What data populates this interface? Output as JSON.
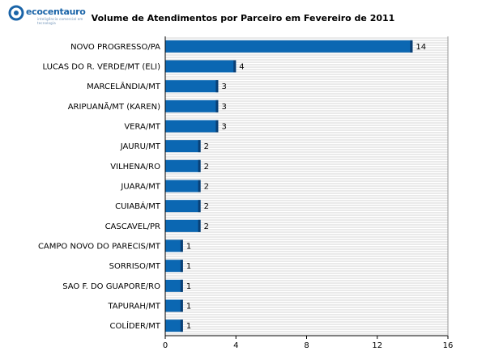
{
  "logo": {
    "name": "ecocentauro",
    "tagline": "inteligência comercial em tecnologia"
  },
  "chart_data": {
    "type": "bar",
    "orientation": "horizontal",
    "title": "Volume de Atendimentos por Parceiro em Fevereiro de 2011",
    "xlabel": "",
    "ylabel": "",
    "xlim": [
      0,
      16
    ],
    "xticks": [
      0,
      4,
      8,
      12,
      16
    ],
    "grid": "horizontal stripes",
    "bar_color": "#0b67b2",
    "bar_edge_color": "#0a3f74",
    "categories": [
      "NOVO PROGRESSO/PA",
      "LUCAS DO R. VERDE/MT (ELI)",
      "MARCELÂNDIA/MT",
      "ARIPUANÃ/MT (KAREN)",
      "VERA/MT",
      "JAURU/MT",
      "VILHENA/RO",
      "JUARA/MT",
      "CUIABÁ/MT",
      "CASCAVEL/PR",
      "CAMPO NOVO DO PARECIS/MT",
      "SORRISO/MT",
      "SAO F. DO GUAPORE/RO",
      "TAPURAH/MT",
      "COLÍDER/MT"
    ],
    "values": [
      14,
      4,
      3,
      3,
      3,
      2,
      2,
      2,
      2,
      2,
      1,
      1,
      1,
      1,
      1
    ]
  }
}
